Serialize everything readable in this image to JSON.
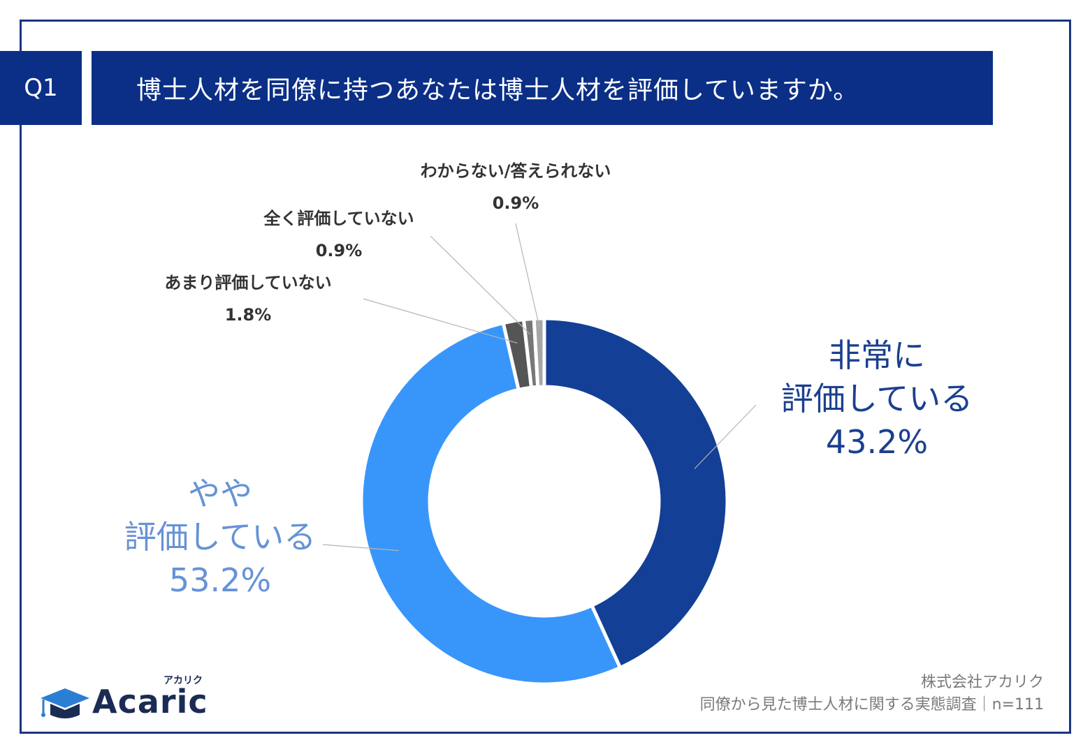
{
  "header": {
    "badge": "Q1",
    "question": "博士人材を同僚に持つあなたは博士人材を評価していますか。"
  },
  "chart_data": {
    "type": "pie",
    "variant": "donut",
    "categories": [
      "非常に評価している",
      "やや評価している",
      "あまり評価していない",
      "全く評価していない",
      "わからない/答えられない"
    ],
    "values": [
      43.2,
      53.2,
      1.8,
      0.9,
      0.9
    ],
    "unit": "%",
    "colors": [
      "#133f96",
      "#3896fb",
      "#555555",
      "#777777",
      "#a6a6a6"
    ],
    "labels": [
      {
        "lines": [
          "非常に",
          "評価している"
        ],
        "value": "43.2%"
      },
      {
        "lines": [
          "やや",
          "評価している"
        ],
        "value": "53.2%"
      },
      {
        "lines": [
          "あまり評価していない"
        ],
        "value": "1.8%"
      },
      {
        "lines": [
          "全く評価していない"
        ],
        "value": "0.9%"
      },
      {
        "lines": [
          "わからない/答えられない"
        ],
        "value": "0.9%"
      }
    ]
  },
  "footer": {
    "company": "株式会社アカリク",
    "survey": "同僚から見た博士人材に関する実態調査｜n=111"
  },
  "logo": {
    "word": "Acaric",
    "kana": "アカリク",
    "color": "#1b2c54",
    "cap_color": "#2a7fd4"
  }
}
